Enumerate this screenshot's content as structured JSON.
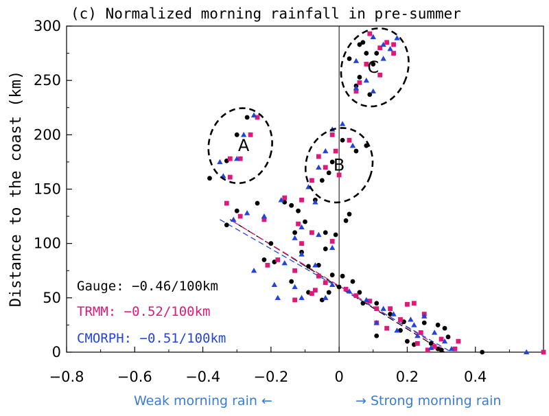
{
  "chart_data": {
    "type": "scatter",
    "title": "(c) Normalized morning rainfall in pre-summer",
    "xlabel": "",
    "ylabel": "Distance to the coast (km)",
    "xlim": [
      -0.8,
      0.6
    ],
    "ylim": [
      0,
      300
    ],
    "x_ticks": [
      -0.8,
      -0.6,
      -0.4,
      -0.2,
      0,
      0.2,
      0.4
    ],
    "x_tick_labels": [
      "−0.8",
      "−0.6",
      "−0.4",
      "−0.2",
      "0",
      "0.2",
      "0.4"
    ],
    "y_ticks": [
      0,
      50,
      100,
      150,
      200,
      250,
      300
    ],
    "y_tick_labels": [
      "0",
      "50",
      "100",
      "150",
      "200",
      "250",
      "300"
    ],
    "reference_lines": {
      "x": 0,
      "y": 0
    },
    "colors": {
      "gauge": "#000000",
      "trmm": "#e0187a",
      "cmorph": "#2244dd",
      "note": "#3a7bd5"
    },
    "series": [
      {
        "name": "Gauge",
        "marker": "circle",
        "color": "#000000",
        "legend": "Gauge: −0.46/100km",
        "trend": {
          "x": [
            -0.32,
            0.31
          ],
          "y": [
            122,
            0
          ]
        },
        "points": [
          [
            -0.38,
            160
          ],
          [
            -0.3,
            200
          ],
          [
            -0.27,
            216
          ],
          [
            -0.33,
            176
          ],
          [
            -0.02,
            175
          ],
          [
            0.05,
            185
          ],
          [
            -0.05,
            158
          ],
          [
            -0.07,
            140
          ],
          [
            0.01,
            195
          ],
          [
            -0.03,
            165
          ],
          [
            0.08,
            190
          ],
          [
            -0.14,
            135
          ],
          [
            0.06,
            283
          ],
          [
            0.11,
            275
          ],
          [
            0.08,
            275
          ],
          [
            0.07,
            285
          ],
          [
            0.05,
            245
          ],
          [
            0.09,
            237
          ],
          [
            0.03,
            270
          ],
          [
            0.06,
            253
          ],
          [
            0.1,
            265
          ],
          [
            -0.33,
            117
          ],
          [
            -0.3,
            130
          ],
          [
            -0.24,
            137
          ],
          [
            -0.16,
            138
          ],
          [
            -0.14,
            135
          ],
          [
            -0.12,
            130
          ],
          [
            -0.1,
            120
          ],
          [
            -0.13,
            110
          ],
          [
            -0.04,
            110
          ],
          [
            -0.01,
            108
          ],
          [
            0.03,
            127
          ],
          [
            0.02,
            121
          ],
          [
            -0.2,
            100
          ],
          [
            -0.22,
            85
          ],
          [
            -0.19,
            83
          ],
          [
            -0.11,
            92
          ],
          [
            -0.04,
            95
          ],
          [
            -0.06,
            80
          ],
          [
            -0.09,
            79
          ],
          [
            -0.02,
            71
          ],
          [
            -0.14,
            65
          ],
          [
            -0.09,
            55
          ],
          [
            0.0,
            60
          ],
          [
            0.04,
            65
          ],
          [
            0.06,
            55
          ],
          [
            0.11,
            45
          ],
          [
            0.15,
            35
          ],
          [
            0.19,
            28
          ],
          [
            0.25,
            27
          ],
          [
            0.29,
            25
          ],
          [
            0.18,
            20
          ],
          [
            0.11,
            15
          ],
          [
            0.2,
            10
          ],
          [
            0.22,
            7
          ],
          [
            0.27,
            8
          ],
          [
            0.29,
            3
          ],
          [
            0.3,
            2
          ],
          [
            0.32,
            14
          ],
          [
            0.31,
            22
          ],
          [
            0.42,
            0
          ],
          [
            -0.03,
            55
          ],
          [
            -0.05,
            48
          ],
          [
            0.01,
            70
          ],
          [
            0.07,
            45
          ]
        ]
      },
      {
        "name": "TRMM",
        "marker": "square",
        "color": "#e0187a",
        "legend": "TRMM: −0.52/100km",
        "trend": {
          "x": [
            -0.31,
            0.32
          ],
          "y": [
            120,
            0
          ]
        },
        "points": [
          [
            -0.32,
            178
          ],
          [
            -0.32,
            161
          ],
          [
            -0.29,
            178
          ],
          [
            -0.26,
            200
          ],
          [
            -0.24,
            216
          ],
          [
            -0.02,
            200
          ],
          [
            0.03,
            195
          ],
          [
            -0.01,
            185
          ],
          [
            -0.06,
            180
          ],
          [
            -0.04,
            170
          ],
          [
            -0.08,
            158
          ],
          [
            0.0,
            163
          ],
          [
            -0.11,
            140
          ],
          [
            0.09,
            293
          ],
          [
            0.14,
            285
          ],
          [
            0.12,
            280
          ],
          [
            0.16,
            275
          ],
          [
            0.08,
            265
          ],
          [
            0.06,
            248
          ],
          [
            0.12,
            255
          ],
          [
            0.16,
            283
          ],
          [
            0.05,
            240
          ],
          [
            -0.33,
            137
          ],
          [
            -0.29,
            125
          ],
          [
            -0.22,
            122
          ],
          [
            -0.16,
            142
          ],
          [
            -0.12,
            118
          ],
          [
            -0.08,
            110
          ],
          [
            -0.02,
            102
          ],
          [
            -0.11,
            100
          ],
          [
            -0.21,
            80
          ],
          [
            -0.18,
            85
          ],
          [
            -0.13,
            75
          ],
          [
            -0.06,
            70
          ],
          [
            -0.04,
            64
          ],
          [
            -0.07,
            57
          ],
          [
            -0.08,
            54
          ],
          [
            -0.13,
            48
          ],
          [
            0.02,
            58
          ],
          [
            0.05,
            52
          ],
          [
            0.09,
            47
          ],
          [
            0.11,
            40
          ],
          [
            0.15,
            40
          ],
          [
            0.2,
            44
          ],
          [
            0.22,
            45
          ],
          [
            0.25,
            35
          ],
          [
            0.18,
            30
          ],
          [
            0.11,
            27
          ],
          [
            0.14,
            22
          ],
          [
            0.24,
            18
          ],
          [
            0.3,
            12
          ],
          [
            0.28,
            5
          ],
          [
            0.23,
            8
          ],
          [
            0.35,
            10
          ],
          [
            0.34,
            3
          ],
          [
            0.6,
            0
          ],
          [
            0.26,
            2
          ]
        ]
      },
      {
        "name": "CMORPH",
        "marker": "triangle",
        "color": "#2244dd",
        "legend": "CMORPH: −0.51/100km",
        "trend": {
          "x": [
            -0.35,
            0.33
          ],
          "y": [
            122,
            0
          ]
        },
        "points": [
          [
            -0.35,
            175
          ],
          [
            -0.34,
            162
          ],
          [
            -0.28,
            200
          ],
          [
            -0.3,
            178
          ],
          [
            -0.25,
            218
          ],
          [
            -0.02,
            205
          ],
          [
            0.01,
            210
          ],
          [
            0.04,
            190
          ],
          [
            -0.04,
            185
          ],
          [
            -0.06,
            170
          ],
          [
            -0.09,
            152
          ],
          [
            -0.07,
            138
          ],
          [
            0.13,
            283
          ],
          [
            0.17,
            289
          ],
          [
            0.15,
            279
          ],
          [
            0.1,
            290
          ],
          [
            0.05,
            268
          ],
          [
            0.13,
            270
          ],
          [
            0.05,
            243
          ],
          [
            0.1,
            240
          ],
          [
            0.08,
            250
          ],
          [
            -0.31,
            122
          ],
          [
            -0.27,
            128
          ],
          [
            -0.22,
            125
          ],
          [
            -0.17,
            140
          ],
          [
            -0.11,
            115
          ],
          [
            -0.06,
            108
          ],
          [
            -0.02,
            96
          ],
          [
            -0.13,
            105
          ],
          [
            -0.25,
            75
          ],
          [
            -0.19,
            62
          ],
          [
            -0.16,
            82
          ],
          [
            -0.11,
            90
          ],
          [
            -0.07,
            80
          ],
          [
            -0.02,
            62
          ],
          [
            -0.04,
            50
          ],
          [
            -0.13,
            60
          ],
          [
            -0.18,
            50
          ],
          [
            0.03,
            56
          ],
          [
            0.08,
            48
          ],
          [
            -0.11,
            50
          ],
          [
            0.13,
            40
          ],
          [
            0.16,
            35
          ],
          [
            0.21,
            30
          ],
          [
            0.25,
            33
          ],
          [
            0.22,
            25
          ],
          [
            0.17,
            20
          ],
          [
            0.23,
            15
          ],
          [
            0.28,
            18
          ],
          [
            0.31,
            10
          ],
          [
            0.33,
            3
          ],
          [
            0.27,
            4
          ],
          [
            0.55,
            0
          ],
          [
            0.11,
            27
          ]
        ]
      }
    ],
    "annotations": [
      {
        "label": "A",
        "x": -0.28,
        "y": 190
      },
      {
        "label": "B",
        "x": 0.0,
        "y": 172
      },
      {
        "label": "C",
        "x": 0.1,
        "y": 262
      }
    ],
    "bottom_notes": [
      "Weak morning rain ←",
      "→ Strong morning rain"
    ]
  }
}
